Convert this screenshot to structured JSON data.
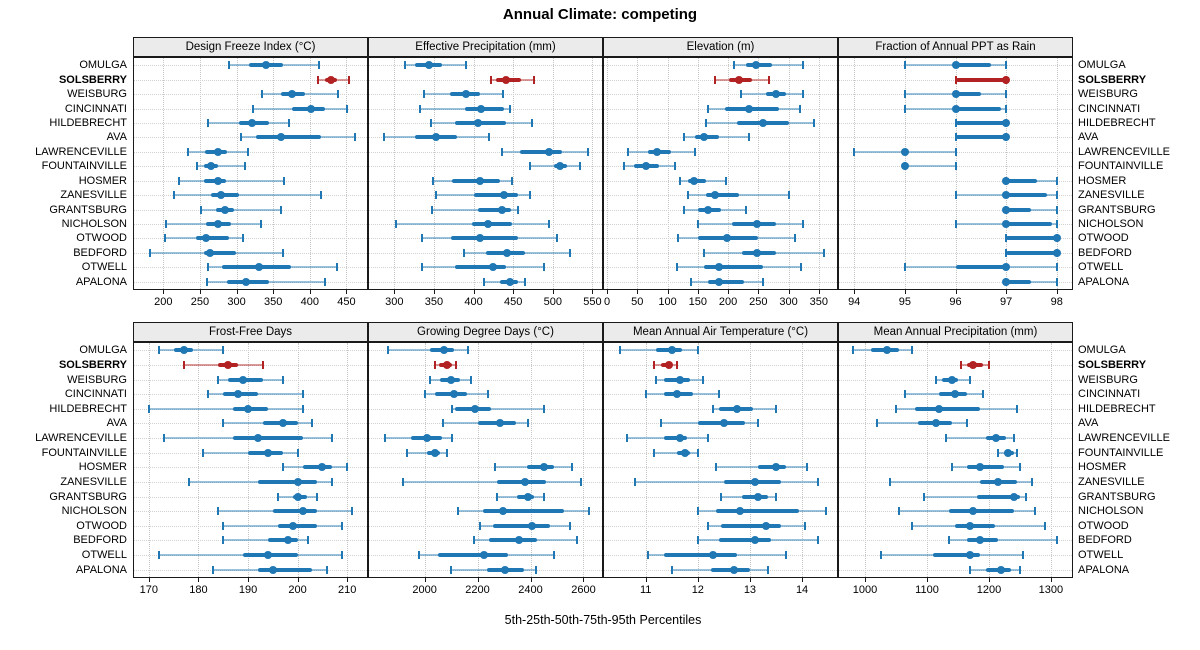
{
  "figure": {
    "title": "Annual Climate: competing",
    "caption": "5th-25th-50th-75th-95th Percentiles"
  },
  "colors": {
    "series": "#1f77b4",
    "highlight": "#b22222",
    "strip_bg": "#ebebeb",
    "grid_line": "#c6c6c6",
    "panel_border": "#1a1a1a"
  },
  "locations": [
    "OMULGA",
    "SOLSBERRY",
    "WEISBURG",
    "CINCINNATI",
    "HILDEBRECHT",
    "AVA",
    "LAWRENCEVILLE",
    "FOUNTAINVILLE",
    "HOSMER",
    "ZANESVILLE",
    "GRANTSBURG",
    "NICHOLSON",
    "OTWOOD",
    "BEDFORD",
    "OTWELL",
    "APALONA"
  ],
  "highlight_location": "SOLSBERRY",
  "percentile_labels": [
    "5th",
    "25th",
    "50th",
    "75th",
    "95th"
  ],
  "chart_data": [
    {
      "type": "dot-interval",
      "title": "Design Freeze Index (°C)",
      "xlim": [
        160,
        478
      ],
      "ticks": [
        200,
        250,
        300,
        350,
        400,
        450
      ],
      "values": [
        [
          290,
          317,
          340,
          363,
          413
        ],
        [
          411,
          421,
          429,
          437,
          454
        ],
        [
          335,
          360,
          375,
          394,
          438
        ],
        [
          323,
          376,
          401,
          421,
          451
        ],
        [
          261,
          303,
          321,
          344,
          371
        ],
        [
          306,
          326,
          360,
          415,
          462
        ],
        [
          234,
          257,
          274,
          287,
          315
        ],
        [
          246,
          255,
          265,
          274,
          312
        ],
        [
          222,
          255,
          274,
          285,
          365
        ],
        [
          214,
          265,
          279,
          303,
          415
        ],
        [
          252,
          272,
          284,
          296,
          360
        ],
        [
          203,
          258,
          275,
          292,
          333
        ],
        [
          202,
          244,
          258,
          290,
          309
        ],
        [
          182,
          255,
          264,
          299,
          364
        ],
        [
          261,
          280,
          330,
          374,
          437
        ],
        [
          259,
          287,
          313,
          344,
          421
        ]
      ]
    },
    {
      "type": "dot-interval",
      "title": "Effective Precipitation (mm)",
      "xlim": [
        268,
        562
      ],
      "ticks": [
        300,
        350,
        400,
        450,
        500,
        550
      ],
      "values": [
        [
          313,
          326,
          344,
          360,
          391
        ],
        [
          422,
          428,
          441,
          460,
          476
        ],
        [
          338,
          370,
          391,
          408,
          437
        ],
        [
          332,
          389,
          409,
          438,
          446
        ],
        [
          346,
          377,
          406,
          441,
          474
        ],
        [
          287,
          326,
          353,
          379,
          419
        ],
        [
          436,
          459,
          495,
          512,
          544
        ],
        [
          471,
          502,
          509,
          518,
          534
        ],
        [
          349,
          373,
          408,
          433,
          448
        ],
        [
          352,
          400,
          438,
          456,
          471
        ],
        [
          348,
          405,
          436,
          447,
          456
        ],
        [
          302,
          398,
          418,
          448,
          495
        ],
        [
          335,
          371,
          408,
          456,
          505
        ],
        [
          388,
          416,
          442,
          465,
          522
        ],
        [
          335,
          376,
          424,
          441,
          489
        ],
        [
          413,
          433,
          446,
          456,
          465
        ]
      ]
    },
    {
      "type": "dot-interval",
      "title": "Elevation (m)",
      "xlim": [
        -5,
        380
      ],
      "ticks": [
        0,
        50,
        100,
        150,
        200,
        250,
        300,
        350
      ],
      "values": [
        [
          209,
          229,
          246,
          272,
          323
        ],
        [
          178,
          202,
          218,
          240,
          268
        ],
        [
          222,
          263,
          280,
          295,
          323
        ],
        [
          167,
          195,
          235,
          285,
          319
        ],
        [
          163,
          215,
          257,
          300,
          342
        ],
        [
          128,
          145,
          160,
          185,
          235
        ],
        [
          34,
          67,
          83,
          106,
          146
        ],
        [
          28,
          44,
          64,
          86,
          113
        ],
        [
          121,
          133,
          143,
          164,
          197
        ],
        [
          133,
          164,
          179,
          218,
          300
        ],
        [
          128,
          151,
          167,
          188,
          229
        ],
        [
          151,
          206,
          247,
          279,
          323
        ],
        [
          117,
          150,
          199,
          250,
          311
        ],
        [
          161,
          223,
          247,
          279,
          358
        ],
        [
          116,
          160,
          185,
          258,
          320
        ],
        [
          138,
          167,
          185,
          226,
          257
        ]
      ]
    },
    {
      "type": "dot-interval",
      "title": "Fraction of Annual PPT as Rain",
      "xlim": [
        93.7,
        98.3
      ],
      "ticks": [
        94,
        95,
        96,
        97,
        98
      ],
      "values": [
        [
          95,
          96,
          96,
          96.7,
          97
        ],
        [
          96,
          96,
          97,
          97,
          97
        ],
        [
          95,
          96,
          96,
          96.5,
          97
        ],
        [
          95,
          96,
          96,
          96.9,
          97
        ],
        [
          96,
          96,
          97,
          97,
          97
        ],
        [
          96,
          96,
          97,
          97,
          97
        ],
        [
          94,
          95,
          95,
          95,
          96
        ],
        [
          95,
          95,
          95,
          95,
          96
        ],
        [
          97,
          97,
          97,
          97.6,
          98
        ],
        [
          96,
          97,
          97,
          97.8,
          98
        ],
        [
          97,
          97,
          97,
          97.5,
          98
        ],
        [
          96,
          97,
          97,
          97.9,
          98
        ],
        [
          97,
          97,
          98,
          98,
          98
        ],
        [
          97,
          97,
          98,
          98,
          98
        ],
        [
          95,
          96,
          97,
          97,
          98
        ],
        [
          97,
          97,
          97,
          97.5,
          98
        ]
      ]
    },
    {
      "type": "dot-interval",
      "title": "Frost-Free Days",
      "xlim": [
        167,
        214
      ],
      "ticks": [
        170,
        180,
        190,
        200,
        210
      ],
      "values": [
        [
          172,
          175,
          177,
          179,
          185
        ],
        [
          177,
          184,
          186,
          188,
          193
        ],
        [
          184,
          186,
          189,
          193,
          197
        ],
        [
          182,
          185,
          188,
          192,
          201
        ],
        [
          170,
          187,
          190,
          194,
          201
        ],
        [
          185,
          193,
          197,
          200,
          203
        ],
        [
          173,
          187,
          192,
          201,
          207
        ],
        [
          181,
          190,
          194,
          197,
          200
        ],
        [
          197,
          201,
          205,
          207,
          210
        ],
        [
          178,
          192,
          200,
          204,
          207
        ],
        [
          196,
          199,
          200,
          202,
          204
        ],
        [
          184,
          195,
          201,
          204,
          211
        ],
        [
          185,
          196,
          199,
          204,
          209
        ],
        [
          185,
          194,
          198,
          200,
          202
        ],
        [
          172,
          189,
          194,
          200,
          209
        ],
        [
          183,
          192,
          195,
          203,
          206
        ]
      ]
    },
    {
      "type": "dot-interval",
      "title": "Growing Degree Days (°C)",
      "xlim": [
        1790,
        2670
      ],
      "ticks": [
        2000,
        2200,
        2400,
        2600
      ],
      "values": [
        [
          1860,
          2020,
          2075,
          2110,
          2165
        ],
        [
          2040,
          2055,
          2085,
          2105,
          2120
        ],
        [
          2020,
          2060,
          2100,
          2135,
          2175
        ],
        [
          2000,
          2040,
          2110,
          2160,
          2240
        ],
        [
          2105,
          2115,
          2190,
          2250,
          2450
        ],
        [
          2070,
          2200,
          2285,
          2345,
          2390
        ],
        [
          1850,
          1950,
          2010,
          2065,
          2105
        ],
        [
          1935,
          2010,
          2040,
          2060,
          2085
        ],
        [
          2265,
          2385,
          2450,
          2490,
          2555
        ],
        [
          1920,
          2275,
          2380,
          2460,
          2590
        ],
        [
          2275,
          2350,
          2390,
          2415,
          2450
        ],
        [
          2125,
          2220,
          2295,
          2525,
          2620
        ],
        [
          2210,
          2260,
          2405,
          2475,
          2550
        ],
        [
          2185,
          2245,
          2355,
          2425,
          2575
        ],
        [
          1980,
          2050,
          2225,
          2315,
          2490
        ],
        [
          2100,
          2235,
          2305,
          2375,
          2420
        ]
      ]
    },
    {
      "type": "dot-interval",
      "title": "Mean Annual Air Temperature (°C)",
      "xlim": [
        10.2,
        14.67
      ],
      "ticks": [
        11,
        12,
        13,
        14
      ],
      "values": [
        [
          10.5,
          11.2,
          11.5,
          11.7,
          12.0
        ],
        [
          11.15,
          11.3,
          11.45,
          11.5,
          11.6
        ],
        [
          11.2,
          11.35,
          11.65,
          11.85,
          12.1
        ],
        [
          11.0,
          11.35,
          11.6,
          11.9,
          12.4
        ],
        [
          12.3,
          12.4,
          12.75,
          13.05,
          13.5
        ],
        [
          11.3,
          12.0,
          12.5,
          12.9,
          13.15
        ],
        [
          10.65,
          11.35,
          11.65,
          11.8,
          12.2
        ],
        [
          11.15,
          11.6,
          11.75,
          11.85,
          12.0
        ],
        [
          12.35,
          13.15,
          13.5,
          13.7,
          14.1
        ],
        [
          10.8,
          12.5,
          13.1,
          13.6,
          14.3
        ],
        [
          12.45,
          12.85,
          13.15,
          13.35,
          13.5
        ],
        [
          12.0,
          12.35,
          12.8,
          13.95,
          14.45
        ],
        [
          12.2,
          12.45,
          13.3,
          13.6,
          14.05
        ],
        [
          12.0,
          12.4,
          13.1,
          13.4,
          14.3
        ],
        [
          11.05,
          11.35,
          12.3,
          12.75,
          13.7
        ],
        [
          11.5,
          12.25,
          12.7,
          13.0,
          13.35
        ]
      ]
    },
    {
      "type": "dot-interval",
      "title": "Mean Annual Precipitation (mm)",
      "xlim": [
        958,
        1334
      ],
      "ticks": [
        1000,
        1100,
        1200,
        1300
      ],
      "values": [
        [
          980,
          1010,
          1035,
          1055,
          1075
        ],
        [
          1155,
          1165,
          1175,
          1190,
          1200
        ],
        [
          1115,
          1125,
          1140,
          1150,
          1170
        ],
        [
          1065,
          1120,
          1145,
          1165,
          1190
        ],
        [
          1050,
          1080,
          1120,
          1185,
          1245
        ],
        [
          1020,
          1085,
          1115,
          1140,
          1165
        ],
        [
          1130,
          1195,
          1212,
          1227,
          1240
        ],
        [
          1215,
          1225,
          1230,
          1240,
          1245
        ],
        [
          1140,
          1165,
          1185,
          1225,
          1250
        ],
        [
          1040,
          1185,
          1215,
          1245,
          1270
        ],
        [
          1095,
          1180,
          1240,
          1250,
          1260
        ],
        [
          1055,
          1135,
          1175,
          1240,
          1275
        ],
        [
          1075,
          1145,
          1170,
          1210,
          1290
        ],
        [
          1135,
          1165,
          1185,
          1215,
          1310
        ],
        [
          1025,
          1110,
          1170,
          1185,
          1255
        ],
        [
          1170,
          1195,
          1220,
          1235,
          1250
        ]
      ]
    }
  ]
}
